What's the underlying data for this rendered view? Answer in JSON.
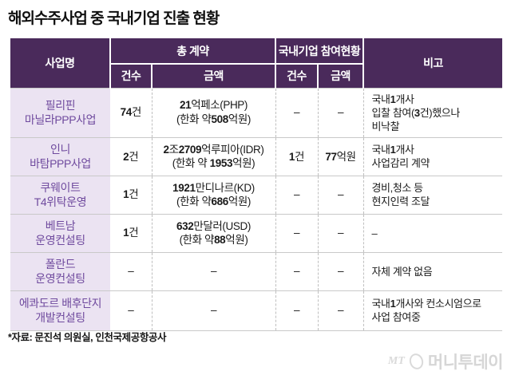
{
  "page": {
    "title": "해외수주사업 중 국내기업 진출 현황",
    "source_note": "*자료: 문진석 의원실, 인천국제공항공사",
    "logo": {
      "mt": "MT",
      "name": "머니투데이"
    }
  },
  "colors": {
    "header_bg": "#4A2A5B",
    "project_col_bg": "#EBE3F2",
    "project_col_text": "#6F4A9E",
    "row_line": "#C9C9C9"
  },
  "chart_data": {
    "type": "table",
    "title": "해외수주사업 중 국내기업 진출 현황",
    "column_groups": [
      {
        "label": "사업명",
        "span": 1
      },
      {
        "label": "총 계약",
        "span": 2
      },
      {
        "label": "국내기업 참여현황",
        "span": 2
      },
      {
        "label": "비고",
        "span": 1
      }
    ],
    "sub_columns": [
      "건수",
      "금액",
      "건수",
      "금액"
    ],
    "rows": [
      {
        "project": "필리핀\n마닐라PPP사업",
        "total_count": "74건",
        "total_amount": "21억페소(PHP)\n(한화 약508억원)",
        "domestic_count": "–",
        "domestic_amount": "–",
        "remarks": "국내1개사\n입찰 참여(3건)했으나\n비낙찰"
      },
      {
        "project": "인니\n바탐PPP사업",
        "total_count": "2건",
        "total_amount": "2조2709억루피아(IDR)\n(한화 약 1953억원)",
        "domestic_count": "1건",
        "domestic_amount": "77억원",
        "remarks": "국내1개사\n사업감리 계약"
      },
      {
        "project": "쿠웨이트\nT4위탁운영",
        "total_count": "1건",
        "total_amount": "1921만디나르(KD)\n(한화 약686억원)",
        "domestic_count": "–",
        "domestic_amount": "–",
        "remarks": "경비,청소 등\n현지인력 조달"
      },
      {
        "project": "베트남\n운영컨설팅",
        "total_count": "1건",
        "total_amount": "632만달러(USD)\n(한화 약88억원)",
        "domestic_count": "–",
        "domestic_amount": "–",
        "remarks": "–"
      },
      {
        "project": "폴란드\n운영컨설팅",
        "total_count": "–",
        "total_amount": "–",
        "domestic_count": "–",
        "domestic_amount": "–",
        "remarks": "자체 계약 없음"
      },
      {
        "project": "에콰도르 배후단지\n개발컨설팅",
        "total_count": "–",
        "total_amount": "–",
        "domestic_count": "–",
        "domestic_amount": "–",
        "remarks": "국내1개사와 컨소시엄으로\n사업 참여중"
      }
    ]
  }
}
